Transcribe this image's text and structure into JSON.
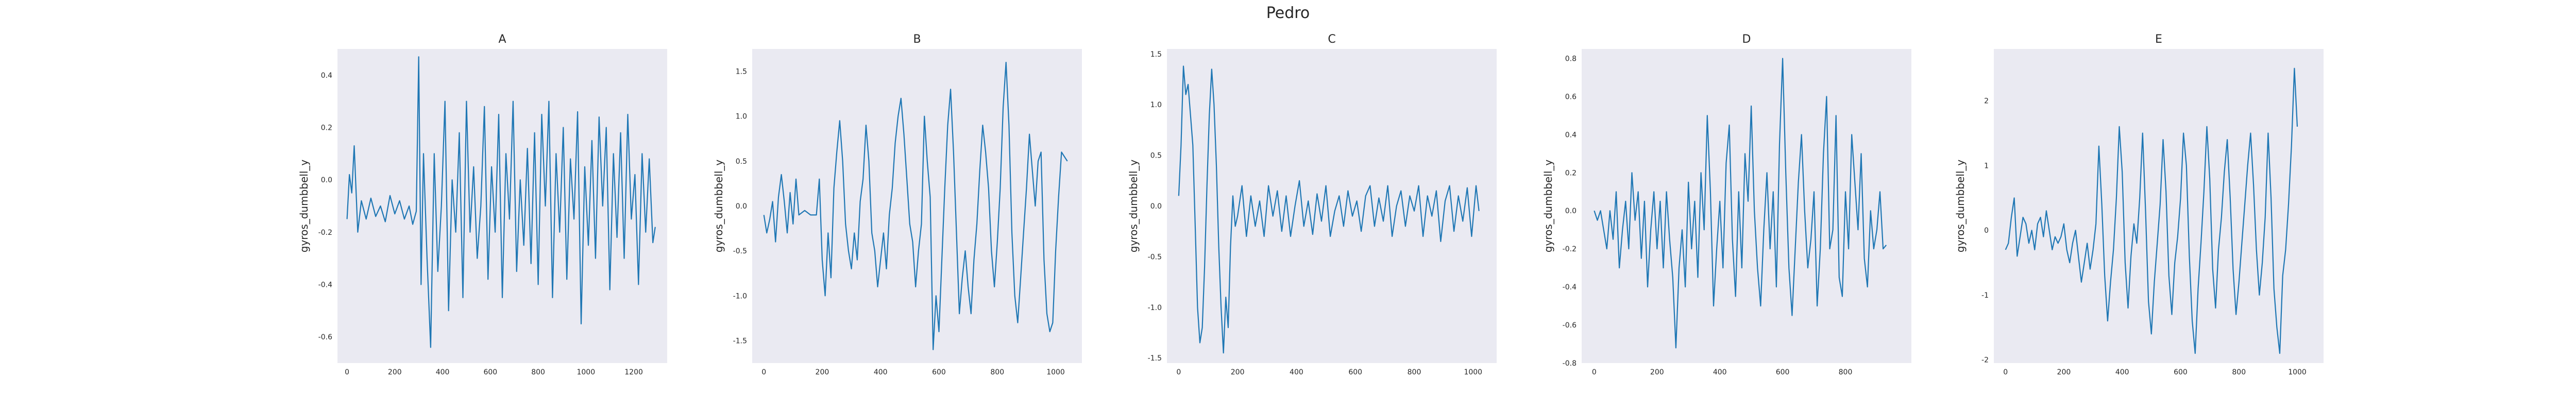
{
  "figure": {
    "suptitle": "Pedro"
  },
  "style": {
    "panel_bg": "#eaeaf2",
    "line_color": "#1f77b4",
    "text_color": "#262626"
  },
  "chart_data": [
    {
      "type": "line",
      "title": "A",
      "xlabel": "",
      "ylabel": "gyros_dumbbell_y",
      "xlim": [
        -40,
        1340
      ],
      "ylim": [
        -0.7,
        0.5
      ],
      "xticks": [
        0,
        200,
        400,
        600,
        800,
        1000,
        1200
      ],
      "yticks": [
        -0.6,
        -0.4,
        -0.2,
        0.0,
        0.2,
        0.4
      ],
      "yticklabels": [
        "-0.6",
        "-0.4",
        "-0.2",
        "0.0",
        "0.2",
        "0.4"
      ],
      "grid": false,
      "series": [
        {
          "x": [
            0,
            10,
            20,
            30,
            45,
            60,
            80,
            100,
            120,
            140,
            160,
            180,
            200,
            220,
            240,
            260,
            275,
            290,
            300,
            310,
            320,
            335,
            350,
            365,
            380,
            395,
            410,
            425,
            440,
            455,
            470,
            485,
            500,
            515,
            530,
            545,
            560,
            575,
            590,
            605,
            620,
            635,
            650,
            665,
            680,
            695,
            710,
            725,
            740,
            755,
            770,
            785,
            800,
            815,
            830,
            845,
            860,
            875,
            890,
            905,
            920,
            935,
            950,
            965,
            980,
            995,
            1010,
            1025,
            1040,
            1055,
            1070,
            1085,
            1100,
            1115,
            1130,
            1145,
            1160,
            1175,
            1190,
            1205,
            1220,
            1235,
            1250,
            1265,
            1280,
            1290
          ],
          "y": [
            -0.15,
            0.02,
            -0.05,
            0.13,
            -0.2,
            -0.08,
            -0.15,
            -0.07,
            -0.14,
            -0.1,
            -0.16,
            -0.06,
            -0.13,
            -0.08,
            -0.15,
            -0.1,
            -0.17,
            -0.12,
            0.47,
            -0.4,
            0.1,
            -0.3,
            -0.64,
            0.1,
            -0.35,
            -0.1,
            0.3,
            -0.5,
            0.0,
            -0.2,
            0.18,
            -0.45,
            0.3,
            -0.2,
            0.05,
            -0.3,
            -0.1,
            0.28,
            -0.38,
            0.05,
            -0.2,
            0.25,
            -0.45,
            0.1,
            -0.15,
            0.3,
            -0.35,
            0.0,
            -0.25,
            0.12,
            -0.32,
            0.18,
            -0.4,
            0.25,
            -0.1,
            0.3,
            -0.45,
            0.1,
            -0.2,
            0.2,
            -0.38,
            0.08,
            -0.15,
            0.26,
            -0.55,
            0.05,
            -0.25,
            0.15,
            -0.3,
            0.24,
            -0.1,
            0.2,
            -0.42,
            0.1,
            -0.22,
            0.18,
            -0.3,
            0.25,
            -0.15,
            0.02,
            -0.4,
            0.1,
            -0.2,
            0.08,
            -0.24,
            -0.18
          ]
        }
      ]
    },
    {
      "type": "line",
      "title": "B",
      "xlabel": "",
      "ylabel": "gyros_dumbbell_y",
      "xlim": [
        -40,
        1090
      ],
      "ylim": [
        -1.75,
        1.75
      ],
      "xticks": [
        0,
        200,
        400,
        600,
        800,
        1000
      ],
      "yticks": [
        -1.5,
        -1.0,
        -0.5,
        0.0,
        0.5,
        1.0,
        1.5
      ],
      "yticklabels": [
        "-1.5",
        "-1.0",
        "-0.5",
        "0.0",
        "0.5",
        "1.0",
        "1.5"
      ],
      "grid": false,
      "series": [
        {
          "x": [
            0,
            10,
            20,
            30,
            40,
            50,
            60,
            70,
            80,
            90,
            100,
            110,
            120,
            140,
            160,
            180,
            190,
            200,
            210,
            220,
            230,
            240,
            250,
            260,
            270,
            280,
            290,
            300,
            310,
            320,
            330,
            340,
            350,
            360,
            370,
            380,
            390,
            400,
            410,
            420,
            430,
            440,
            450,
            460,
            470,
            480,
            490,
            500,
            510,
            520,
            530,
            540,
            550,
            560,
            570,
            580,
            590,
            600,
            610,
            620,
            630,
            640,
            650,
            660,
            670,
            680,
            690,
            700,
            710,
            720,
            730,
            740,
            750,
            760,
            770,
            780,
            790,
            800,
            810,
            820,
            830,
            840,
            850,
            860,
            870,
            880,
            890,
            900,
            910,
            920,
            930,
            940,
            950,
            960,
            970,
            980,
            990,
            1000,
            1010,
            1020,
            1030,
            1040
          ],
          "y": [
            -0.1,
            -0.3,
            -0.15,
            0.05,
            -0.4,
            0.1,
            0.35,
            0.05,
            -0.3,
            0.15,
            -0.2,
            0.3,
            -0.1,
            -0.05,
            -0.1,
            -0.1,
            0.3,
            -0.6,
            -1.0,
            -0.3,
            -0.8,
            0.2,
            0.6,
            0.95,
            0.5,
            -0.2,
            -0.5,
            -0.7,
            -0.3,
            -0.6,
            0.05,
            0.3,
            0.9,
            0.5,
            -0.3,
            -0.5,
            -0.9,
            -0.6,
            -0.3,
            -0.7,
            -0.1,
            0.2,
            0.7,
            1.0,
            1.2,
            0.8,
            0.3,
            -0.2,
            -0.4,
            -0.9,
            -0.5,
            -0.2,
            1.0,
            0.5,
            0.1,
            -1.6,
            -1.0,
            -1.4,
            -0.6,
            0.2,
            0.9,
            1.3,
            0.6,
            -0.3,
            -1.2,
            -0.8,
            -0.5,
            -0.9,
            -1.2,
            -0.6,
            -0.2,
            0.4,
            0.9,
            0.6,
            0.2,
            -0.5,
            -0.9,
            -0.4,
            0.2,
            1.1,
            1.6,
            0.9,
            -0.3,
            -1.0,
            -1.3,
            -0.8,
            -0.3,
            0.2,
            0.8,
            0.4,
            0.0,
            0.5,
            0.6,
            -0.6,
            -1.2,
            -1.4,
            -1.3,
            -0.5,
            0.1,
            0.6,
            0.55,
            0.5
          ]
        }
      ]
    },
    {
      "type": "line",
      "title": "C",
      "xlabel": "",
      "ylabel": "gyros_dumbbell_y",
      "xlim": [
        -40,
        1080
      ],
      "ylim": [
        -1.55,
        1.55
      ],
      "xticks": [
        0,
        200,
        400,
        600,
        800,
        1000
      ],
      "yticks": [
        -1.5,
        -1.0,
        -0.5,
        0.0,
        0.5,
        1.0,
        1.5
      ],
      "yticklabels": [
        "-1.5",
        "-1.0",
        "-0.5",
        "0.0",
        "0.5",
        "1.0",
        "1.5"
      ],
      "grid": false,
      "series": [
        {
          "x": [
            0,
            8,
            16,
            24,
            32,
            40,
            48,
            56,
            64,
            72,
            80,
            88,
            96,
            104,
            112,
            120,
            128,
            136,
            144,
            152,
            160,
            168,
            176,
            184,
            192,
            200,
            215,
            230,
            245,
            260,
            275,
            290,
            305,
            320,
            335,
            350,
            365,
            380,
            395,
            410,
            425,
            440,
            455,
            470,
            485,
            500,
            515,
            530,
            545,
            560,
            575,
            590,
            605,
            620,
            635,
            650,
            665,
            680,
            695,
            710,
            725,
            740,
            755,
            770,
            785,
            800,
            815,
            830,
            845,
            860,
            875,
            890,
            905,
            920,
            935,
            950,
            965,
            980,
            995,
            1010,
            1020
          ],
          "y": [
            0.1,
            0.6,
            1.38,
            1.1,
            1.2,
            0.9,
            0.6,
            -0.2,
            -1.0,
            -1.35,
            -1.2,
            -0.6,
            0.2,
            0.9,
            1.35,
            1.0,
            0.4,
            -0.4,
            -1.0,
            -1.45,
            -0.9,
            -1.2,
            -0.4,
            0.1,
            -0.2,
            -0.1,
            0.2,
            -0.3,
            0.1,
            -0.2,
            0.05,
            -0.3,
            0.2,
            -0.1,
            0.15,
            -0.25,
            0.1,
            -0.3,
            0.0,
            0.25,
            -0.2,
            0.05,
            -0.28,
            0.12,
            -0.15,
            0.2,
            -0.3,
            -0.05,
            0.1,
            -0.2,
            0.15,
            -0.1,
            0.05,
            -0.25,
            0.1,
            0.2,
            -0.2,
            0.08,
            -0.15,
            0.2,
            -0.3,
            0.0,
            0.15,
            -0.2,
            0.1,
            -0.05,
            0.2,
            -0.3,
            0.1,
            -0.1,
            0.15,
            -0.35,
            0.05,
            0.2,
            -0.25,
            0.1,
            -0.15,
            0.18,
            -0.3,
            0.2,
            -0.05
          ]
        }
      ]
    },
    {
      "type": "line",
      "title": "D",
      "xlabel": "",
      "ylabel": "gyros_dumbbell_y",
      "xlim": [
        -40,
        1010
      ],
      "ylim": [
        -0.8,
        0.85
      ],
      "xticks": [
        0,
        200,
        400,
        600,
        800
      ],
      "yticks": [
        -0.8,
        -0.6,
        -0.4,
        -0.2,
        0.0,
        0.2,
        0.4,
        0.6,
        0.8
      ],
      "yticklabels": [
        "-0.8",
        "-0.6",
        "-0.4",
        "-0.2",
        "0.0",
        "0.2",
        "0.4",
        "0.6",
        "0.8"
      ],
      "grid": false,
      "series": [
        {
          "x": [
            0,
            10,
            20,
            30,
            40,
            50,
            60,
            70,
            80,
            90,
            100,
            110,
            120,
            130,
            140,
            150,
            160,
            170,
            180,
            190,
            200,
            210,
            220,
            230,
            240,
            250,
            260,
            270,
            280,
            290,
            300,
            310,
            320,
            330,
            340,
            350,
            360,
            370,
            380,
            390,
            400,
            410,
            420,
            430,
            440,
            450,
            460,
            470,
            480,
            490,
            500,
            510,
            520,
            530,
            540,
            550,
            560,
            570,
            580,
            590,
            600,
            610,
            620,
            630,
            640,
            650,
            660,
            670,
            680,
            690,
            700,
            710,
            720,
            730,
            740,
            750,
            760,
            770,
            780,
            790,
            800,
            810,
            820,
            830,
            840,
            850,
            860,
            870,
            880,
            890,
            900,
            910,
            920,
            930
          ],
          "y": [
            0.0,
            -0.05,
            0.0,
            -0.1,
            -0.2,
            0.0,
            -0.15,
            0.1,
            -0.3,
            -0.1,
            0.05,
            -0.2,
            0.2,
            -0.05,
            0.1,
            -0.25,
            0.05,
            -0.4,
            -0.1,
            0.1,
            -0.2,
            0.05,
            -0.3,
            0.1,
            -0.15,
            -0.35,
            -0.72,
            -0.3,
            -0.1,
            -0.4,
            0.15,
            -0.2,
            0.05,
            -0.35,
            0.2,
            -0.1,
            0.5,
            0.1,
            -0.5,
            -0.2,
            0.05,
            -0.3,
            0.25,
            0.45,
            -0.15,
            -0.45,
            0.1,
            -0.3,
            0.3,
            0.05,
            0.55,
            0.0,
            -0.3,
            -0.5,
            -0.1,
            0.2,
            -0.2,
            0.1,
            -0.4,
            0.35,
            0.8,
            0.2,
            -0.3,
            -0.55,
            -0.2,
            0.15,
            0.4,
            0.0,
            -0.3,
            -0.15,
            0.1,
            -0.5,
            -0.2,
            0.3,
            0.6,
            -0.2,
            -0.1,
            0.5,
            -0.35,
            -0.45,
            0.1,
            -0.2,
            0.4,
            0.15,
            -0.1,
            0.3,
            -0.25,
            -0.4,
            0.0,
            -0.2,
            -0.1,
            0.1,
            -0.2,
            -0.18
          ]
        }
      ]
    },
    {
      "type": "line",
      "title": "E",
      "xlabel": "",
      "ylabel": "gyros_dumbbell_y",
      "xlim": [
        -40,
        1090
      ],
      "ylim": [
        -2.05,
        2.8
      ],
      "xticks": [
        0,
        200,
        400,
        600,
        800,
        1000
      ],
      "yticks": [
        -2,
        -1,
        0,
        1,
        2
      ],
      "yticklabels": [
        "-2",
        "-1",
        "0",
        "1",
        "2"
      ],
      "grid": false,
      "series": [
        {
          "x": [
            0,
            10,
            20,
            30,
            40,
            50,
            60,
            70,
            80,
            90,
            100,
            110,
            120,
            130,
            140,
            150,
            160,
            170,
            180,
            190,
            200,
            210,
            220,
            230,
            240,
            250,
            260,
            270,
            280,
            290,
            300,
            310,
            320,
            330,
            340,
            350,
            360,
            370,
            380,
            390,
            400,
            410,
            420,
            430,
            440,
            450,
            460,
            470,
            480,
            490,
            500,
            510,
            520,
            530,
            540,
            550,
            560,
            570,
            580,
            590,
            600,
            610,
            620,
            630,
            640,
            650,
            660,
            670,
            680,
            690,
            700,
            710,
            720,
            730,
            740,
            750,
            760,
            770,
            780,
            790,
            800,
            810,
            820,
            830,
            840,
            850,
            860,
            870,
            880,
            890,
            900,
            910,
            920,
            930,
            940,
            950,
            960,
            970,
            980,
            990,
            1000
          ],
          "y": [
            -0.3,
            -0.2,
            0.2,
            0.5,
            -0.4,
            -0.1,
            0.2,
            0.1,
            -0.2,
            0.0,
            -0.3,
            0.1,
            0.2,
            -0.1,
            0.3,
            0.0,
            -0.3,
            -0.1,
            -0.2,
            -0.1,
            0.1,
            -0.3,
            -0.5,
            -0.2,
            0.0,
            -0.4,
            -0.8,
            -0.5,
            -0.2,
            -0.6,
            -0.3,
            0.1,
            1.3,
            0.4,
            -0.7,
            -1.4,
            -0.8,
            -0.3,
            0.5,
            1.6,
            0.9,
            -0.5,
            -1.2,
            -0.4,
            0.1,
            -0.2,
            0.5,
            1.5,
            0.3,
            -1.1,
            -1.6,
            -0.8,
            -0.2,
            0.4,
            1.4,
            0.6,
            -0.7,
            -1.3,
            -0.5,
            -0.1,
            0.5,
            1.5,
            1.0,
            -0.4,
            -1.4,
            -1.9,
            -0.9,
            -0.2,
            0.6,
            1.6,
            0.8,
            -0.6,
            -1.2,
            -0.3,
            0.2,
            0.9,
            1.4,
            0.5,
            -0.6,
            -1.3,
            -0.8,
            -0.2,
            0.4,
            1.0,
            1.5,
            0.7,
            -0.3,
            -1.0,
            -0.5,
            0.2,
            1.5,
            0.5,
            -0.9,
            -1.5,
            -1.9,
            -0.7,
            -0.3,
            0.4,
            1.3,
            2.5,
            1.6
          ]
        }
      ]
    }
  ]
}
